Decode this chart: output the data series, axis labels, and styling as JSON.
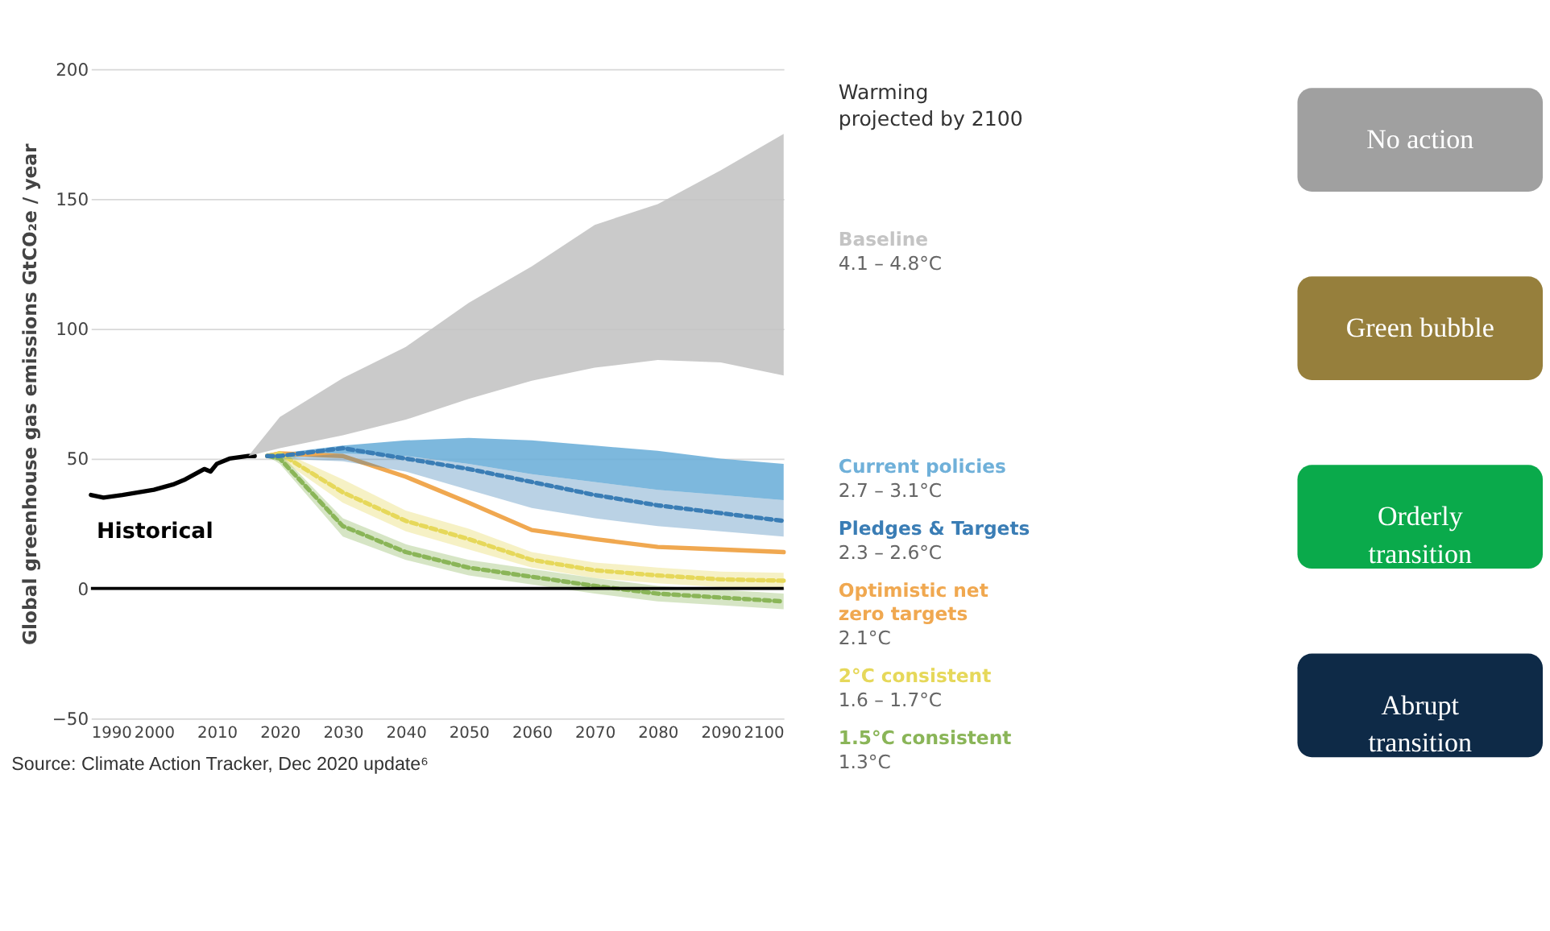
{
  "chart_data": {
    "type": "area",
    "ylabel": "Global greenhouse gas emissions  GtCO₂e / year",
    "xlim": [
      1990,
      2100
    ],
    "xticks": [
      1990,
      2000,
      2010,
      2020,
      2030,
      2040,
      2050,
      2060,
      2070,
      2080,
      2090,
      2100
    ],
    "ylim": [
      -50,
      200
    ],
    "yticks": [
      -50,
      0,
      50,
      100,
      150,
      200
    ],
    "grid": "y",
    "ref_lines": [
      {
        "axis": "y",
        "value": 0,
        "color": "#000000"
      }
    ],
    "series": [
      {
        "name": "Historical",
        "type": "line",
        "color": "#000000",
        "x": [
          1990,
          1992,
          1995,
          2000,
          2003,
          2005,
          2008,
          2009,
          2010,
          2012,
          2015,
          2016
        ],
        "values": [
          36,
          35,
          36,
          38,
          40,
          42,
          46,
          45,
          48,
          50,
          51,
          51
        ]
      },
      {
        "name": "Baseline",
        "color": "#c4c4c4",
        "x": [
          2015,
          2020,
          2030,
          2040,
          2050,
          2060,
          2070,
          2080,
          2090,
          2100
        ],
        "values": [
          null,
          null,
          null,
          null,
          null,
          null,
          null,
          null,
          null,
          null
        ],
        "lower": [
          51,
          54,
          59,
          65,
          73,
          80,
          85,
          88,
          87,
          82
        ],
        "upper": [
          51,
          66,
          81,
          93,
          110,
          124,
          140,
          148,
          161,
          175
        ]
      },
      {
        "name": "Current policies",
        "color": "#6fb0d9",
        "x": [
          2018,
          2020,
          2030,
          2040,
          2050,
          2060,
          2070,
          2080,
          2090,
          2100
        ],
        "values": [
          null,
          null,
          null,
          null,
          null,
          null,
          null,
          null,
          null,
          null
        ],
        "lower": [
          51,
          50,
          52,
          51,
          48,
          44,
          41,
          38,
          36,
          34
        ],
        "upper": [
          51,
          52,
          55,
          57,
          58,
          57,
          55,
          53,
          50,
          48
        ]
      },
      {
        "name": "Pledges & Targets",
        "type": "line",
        "color": "#3a7db5",
        "line_style": "dashed",
        "x": [
          2018,
          2020,
          2030,
          2040,
          2050,
          2060,
          2070,
          2080,
          2090,
          2100
        ],
        "values": [
          51,
          51,
          54,
          50,
          46,
          41,
          36,
          32,
          29,
          26
        ],
        "lower": [
          51,
          50,
          49,
          45,
          38,
          31,
          27,
          24,
          22,
          20
        ],
        "upper": [
          51,
          50,
          52,
          51,
          48,
          44,
          41,
          38,
          36,
          34
        ]
      },
      {
        "name": "Optimistic net zero targets",
        "type": "line",
        "color": "#f0a850",
        "x": [
          2018,
          2020,
          2030,
          2040,
          2050,
          2060,
          2070,
          2080,
          2090,
          2100
        ],
        "values": [
          51,
          52,
          51,
          43,
          33,
          22.5,
          19,
          16,
          15,
          14
        ]
      },
      {
        "name": "2°C consistent",
        "type": "line",
        "color": "#e6d85a",
        "line_style": "dashed",
        "x": [
          2018,
          2020,
          2030,
          2040,
          2050,
          2060,
          2070,
          2080,
          2090,
          2100
        ],
        "values": [
          51,
          52,
          37,
          26,
          19,
          11,
          7,
          5,
          3.5,
          3
        ],
        "lower": [
          51,
          50,
          33,
          22,
          15,
          8,
          4,
          2,
          0.5,
          0
        ],
        "upper": [
          51,
          53,
          42,
          30,
          23,
          14,
          10,
          8,
          6.5,
          6
        ]
      },
      {
        "name": "1.5°C consistent",
        "type": "line",
        "color": "#8ab558",
        "line_style": "dashed",
        "x": [
          2018,
          2020,
          2030,
          2040,
          2050,
          2060,
          2070,
          2080,
          2090,
          2100
        ],
        "values": [
          51,
          50,
          24,
          14,
          8,
          4.5,
          1,
          -2,
          -3.5,
          -5
        ],
        "lower": [
          51,
          48,
          20,
          11,
          5,
          1.5,
          -2,
          -5,
          -6.5,
          -8
        ],
        "upper": [
          51,
          52,
          27,
          17,
          11,
          7.5,
          4,
          1,
          -0.5,
          -2
        ]
      }
    ],
    "annotations": [
      "Warming projected by 2100",
      "Source: Climate Action Tracker, Dec 2020 update⁶",
      "No action",
      "Green bubble",
      "Orderly transition",
      "Abrupt transition",
      "4.1 – 4.8°C",
      "2.7 – 3.1°C",
      "2.3 – 2.6°C",
      "2.1°C",
      "1.6 – 1.7°C",
      "1.3°C"
    ]
  }
}
